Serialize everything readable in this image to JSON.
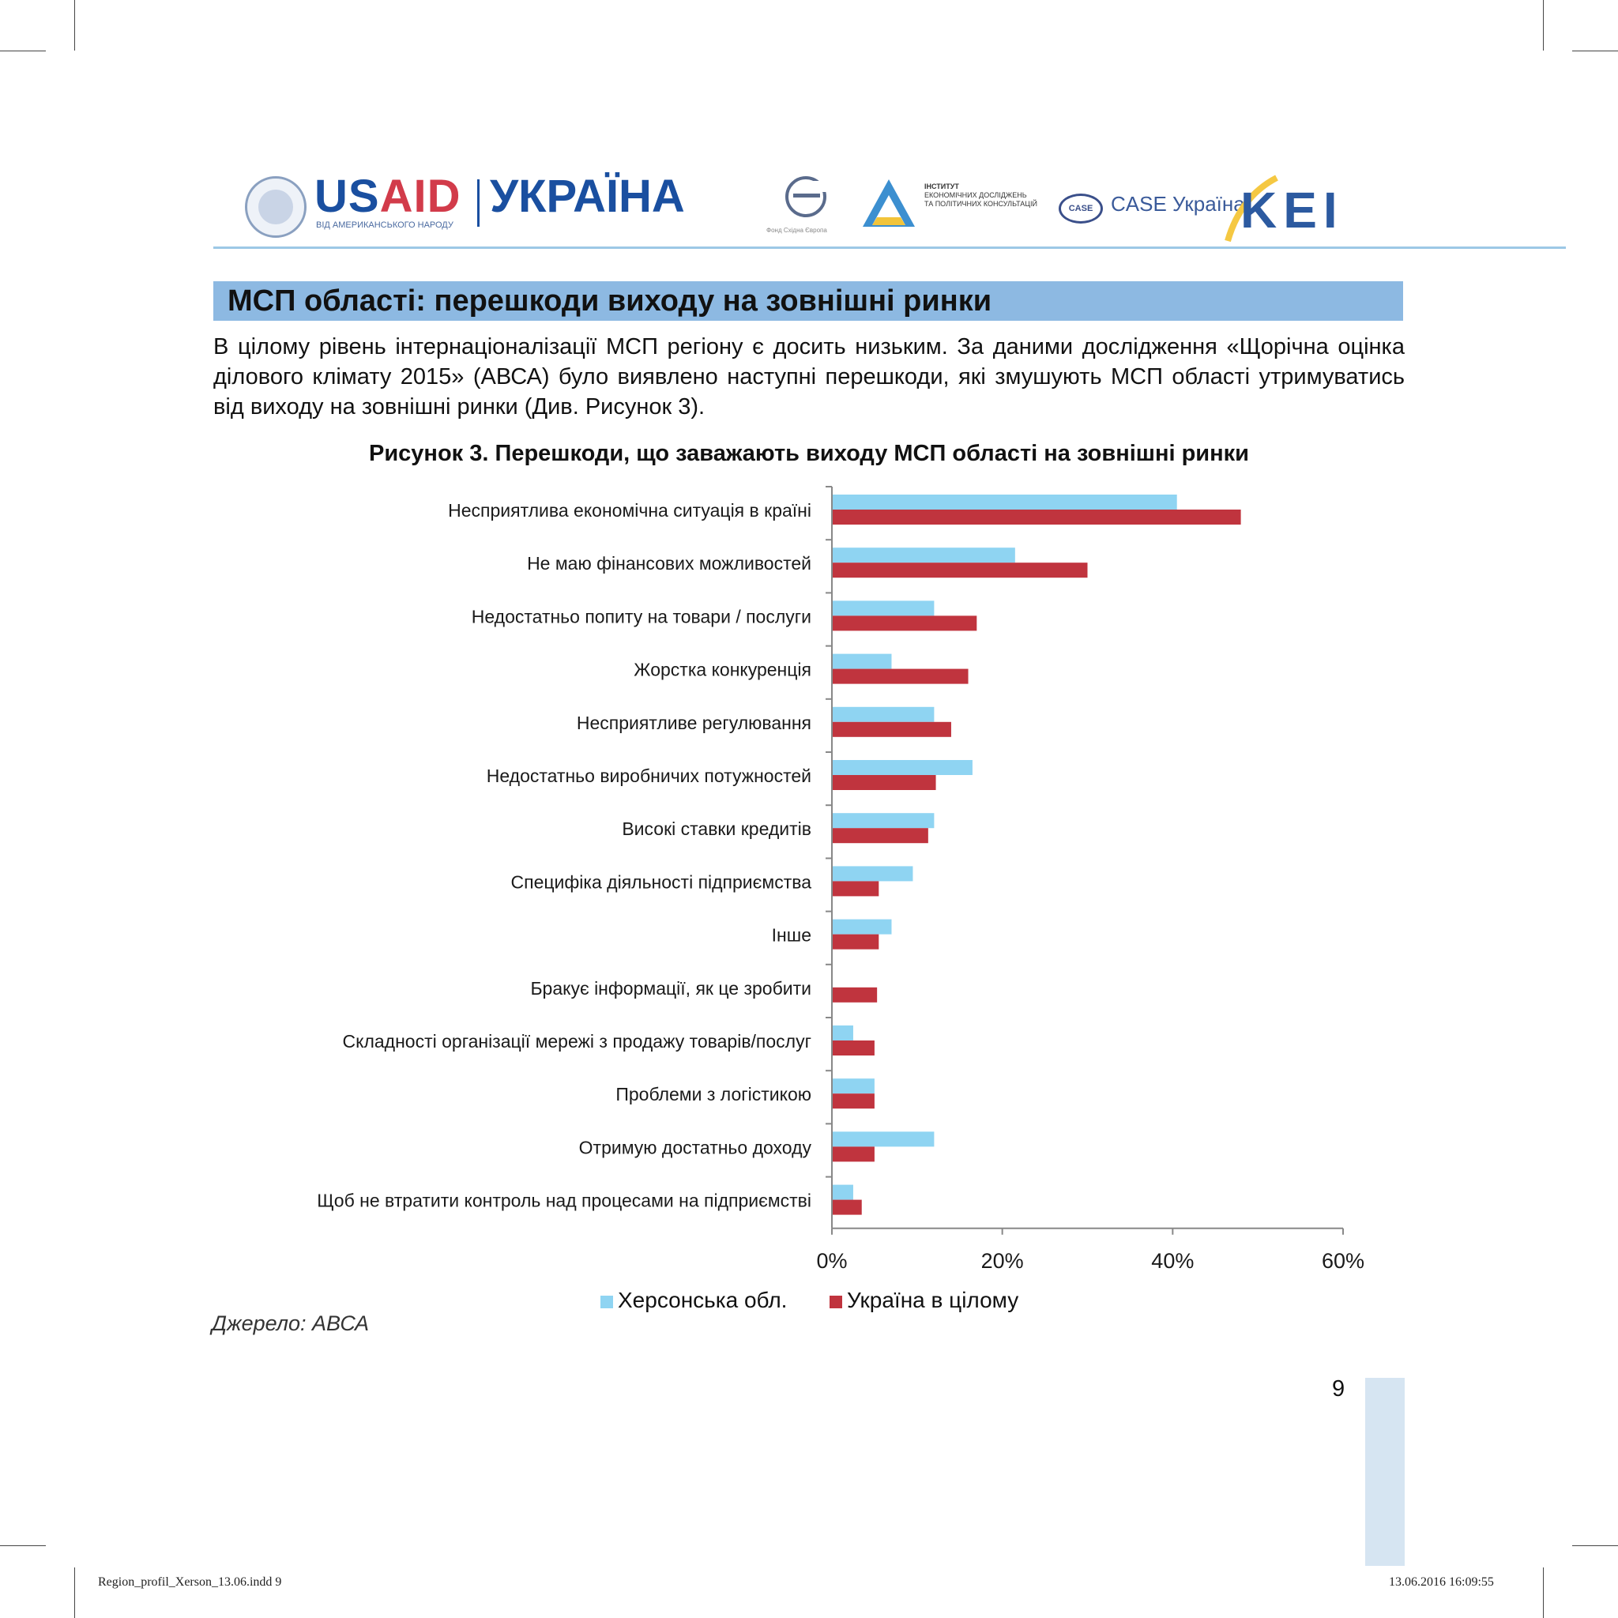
{
  "header": {
    "usaid_part1": "US",
    "usaid_part2": "AID",
    "usaid_sub": "ВІД АМЕРИКАНСЬКОГО НАРОДУ",
    "ukraina": "УКРАЇНА",
    "logo_e_caption": "Фонд Східна Європа",
    "institute_lines": [
      "ІНСТИТУТ",
      "ЕКОНОМІЧНИХ ДОСЛІДЖЕНЬ",
      "ТА ПОЛІТИЧНИХ КОНСУЛЬТАЦІЙ"
    ],
    "case_oval": "CASE",
    "case_text": "CASE Україна",
    "kei_text": "KEI"
  },
  "section_title": "МСП області: перешкоди виходу на зовнішні ринки",
  "intro": "В цілому рівень інтернаціоналізації МСП регіону є досить низьким. За даними дослідження «Щорічна оцінка ділового клімату 2015» (АВСА) було виявлено наступні перешкоди, які змушують МСП області утримуватись від виходу на зовнішні ринки (Див. Рисунок 3).",
  "source": "Джерело: АВСА",
  "page_number": "9",
  "footer": {
    "left": "Region_profil_Xerson_13.06.indd   9",
    "right": "13.06.2016   16:09:55"
  },
  "colors": {
    "series1": "#8fd4f2",
    "series2": "#c0343e",
    "axis": "#888888"
  },
  "chart_data": {
    "type": "bar",
    "orientation": "horizontal",
    "title": "Рисунок 3. Перешкоди, що заважають виходу МСП області на зовнішні ринки",
    "categories": [
      "Несприятлива економічна ситуація в країні",
      "Не маю фінансових можливостей",
      "Недостатньо попиту на товари / послуги",
      "Жорстка конкуренція",
      "Несприятливе регулювання",
      "Недостатньо виробничих потужностей",
      "Високі ставки кредитів",
      "Специфіка діяльності підприємства",
      "Інше",
      "Бракує інформації, як це зробити",
      "Складності організації мережі з продажу товарів/послуг",
      "Проблеми з логістикою",
      "Отримую достатньо доходу",
      "Щоб не втратити контроль над процесами на підприємстві"
    ],
    "series": [
      {
        "name": "Херсонська обл.",
        "values": [
          40.5,
          21.5,
          12,
          7,
          12,
          16.5,
          12,
          9.5,
          7,
          0,
          2.5,
          5,
          12,
          2.5
        ]
      },
      {
        "name": "Україна в цілому",
        "values": [
          48,
          30,
          17,
          16,
          14,
          12.2,
          11.3,
          5.5,
          5.5,
          5.3,
          5,
          5,
          5,
          3.5
        ]
      }
    ],
    "xlim": [
      0,
      60
    ],
    "xticks": [
      "0%",
      "20%",
      "40%",
      "60%"
    ],
    "xtick_values": [
      0,
      20,
      40,
      60
    ],
    "legend_position": "bottom"
  }
}
